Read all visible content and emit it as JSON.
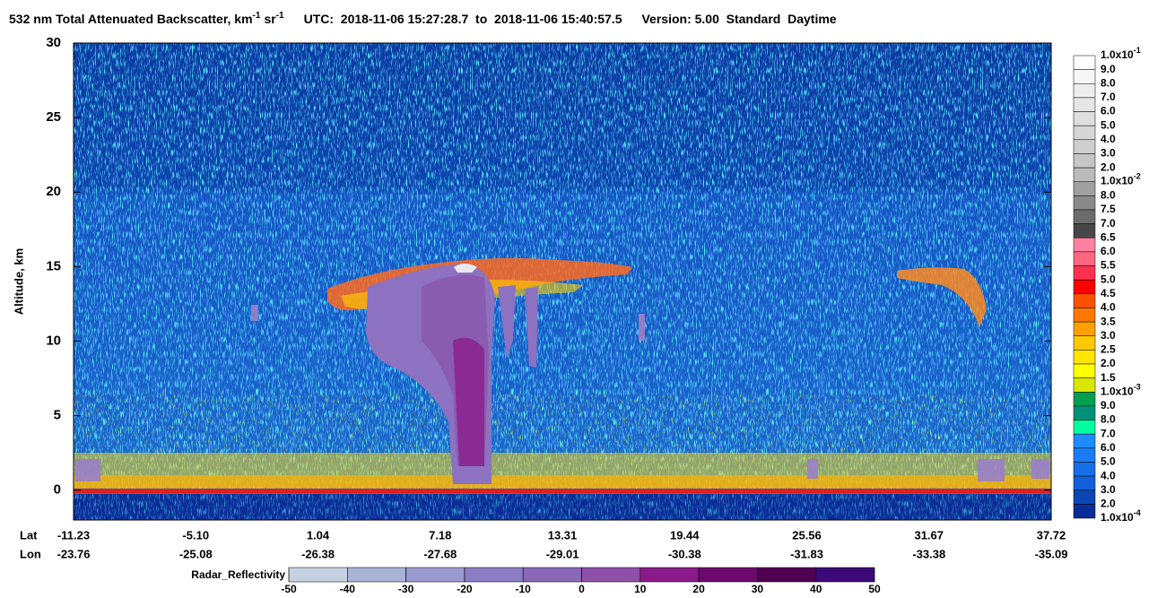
{
  "chart_data": {
    "type": "curtain",
    "title": {
      "main": "532 nm Total Attenuated Backscatter, km",
      "exp1": "-1",
      "unit2": "sr",
      "exp2": "-1",
      "utc": "UTC:  2018-11-06 15:27:28.7  to  2018-11-06 15:40:57.5",
      "version": "Version: 5.00  Standard  Daytime"
    },
    "ylabel": "Altitude, km",
    "ylim": [
      -2,
      30
    ],
    "yticks": [
      0,
      5,
      10,
      15,
      20,
      25,
      30
    ],
    "x_rows": [
      {
        "name": "Lat",
        "labels": [
          "-11.23",
          "-5.10",
          "1.04",
          "7.18",
          "13.31",
          "19.44",
          "25.56",
          "31.67",
          "37.72"
        ]
      },
      {
        "name": "Lon",
        "labels": [
          "-23.76",
          "-25.08",
          "-26.38",
          "-27.68",
          "-29.01",
          "-30.38",
          "-31.83",
          "-33.38",
          "-35.09"
        ]
      }
    ],
    "backscatter_scale": {
      "labels": [
        {
          "text": "1.0x10",
          "exp": "-1"
        },
        "9.0",
        "8.0",
        "7.0",
        "6.0",
        "5.0",
        "4.0",
        "3.0",
        "2.0",
        {
          "text": "1.0x10",
          "exp": "-2"
        },
        "8.0",
        "7.5",
        "7.0",
        "6.5",
        "6.0",
        "5.5",
        "5.0",
        "4.5",
        "4.0",
        "3.5",
        "3.0",
        "2.5",
        "2.0",
        "1.5",
        {
          "text": "1.0x10",
          "exp": "-3"
        },
        "9.0",
        "8.0",
        "7.0",
        "6.0",
        "5.0",
        "4.0",
        "3.0",
        "2.0",
        {
          "text": "1.0x10",
          "exp": "-4"
        }
      ],
      "colors": [
        "#ffffff",
        "#f6f6f6",
        "#eeeeee",
        "#e6e6e6",
        "#dedede",
        "#d6d6d6",
        "#cecece",
        "#c6c6c6",
        "#bbbbbb",
        "#a0a0a0",
        "#8a8a8a",
        "#6c6c6c",
        "#474747",
        "#ff80a0",
        "#ff6680",
        "#ff3050",
        "#ff0000",
        "#ff5000",
        "#ff7800",
        "#ffa000",
        "#ffc800",
        "#ffe600",
        "#ffff00",
        "#d8e600",
        "#00a050",
        "#00907a",
        "#00ffa0",
        "#1e8cff",
        "#1a7cf5",
        "#166ee8",
        "#1260dc",
        "#0c46b4",
        "#0a2c96"
      ]
    },
    "radar_scale": {
      "label": "Radar_Reflectivity",
      "lim": [
        -50,
        50
      ],
      "ticks": [
        -50,
        -40,
        -30,
        -20,
        -10,
        0,
        10,
        20,
        30,
        40,
        50
      ],
      "colors": [
        "#c5d0e0",
        "#a9b3d6",
        "#9a9ad0",
        "#8c7cc4",
        "#8a68b8",
        "#8c50a8",
        "#8a1a8a",
        "#6e0a6e",
        "#500050",
        "#3c0a78"
      ]
    }
  }
}
